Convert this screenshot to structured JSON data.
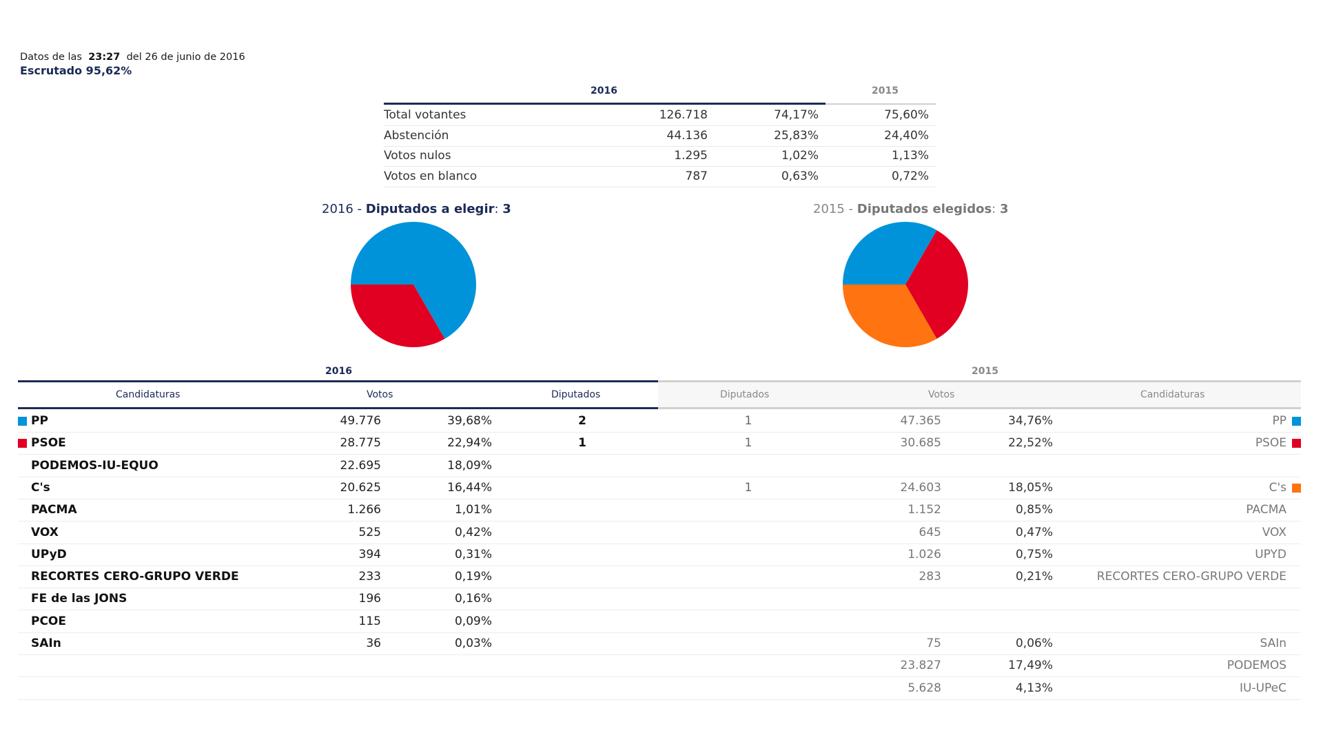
{
  "header": {
    "data_prefix": "Datos de las",
    "time": "23:27",
    "date_suffix": "del 26 de junio de 2016",
    "scrutinized": "Escrutado 95,62%"
  },
  "summary": {
    "year_current": "2016",
    "year_previous": "2015",
    "rows": [
      {
        "label": "Total votantes",
        "votes": "126.718",
        "pct": "74,17%",
        "pct_prev": "75,60%"
      },
      {
        "label": "Abstención",
        "votes": "44.136",
        "pct": "25,83%",
        "pct_prev": "24,40%"
      },
      {
        "label": "Votos nulos",
        "votes": "1.295",
        "pct": "1,02%",
        "pct_prev": "1,13%"
      },
      {
        "label": "Votos en blanco",
        "votes": "787",
        "pct": "0,63%",
        "pct_prev": "0,72%"
      }
    ]
  },
  "pies": {
    "current": {
      "year": "2016",
      "sep": " - ",
      "label": "Diputados a elegir",
      "colon": ": ",
      "count": "3"
    },
    "previous": {
      "year": "2015",
      "sep": " - ",
      "label": "Diputados elegidos",
      "colon": ": ",
      "count": "3"
    }
  },
  "chart_data": [
    {
      "type": "pie",
      "title": "2016 - Diputados a elegir: 3",
      "labels": [
        "PP",
        "PSOE"
      ],
      "values": [
        2,
        1
      ],
      "colors": [
        "#0093d9",
        "#e10022"
      ],
      "start": "left, clockwise"
    },
    {
      "type": "pie",
      "title": "2015 - Diputados elegidos: 3",
      "labels": [
        "PP",
        "PSOE",
        "C's"
      ],
      "values": [
        1,
        1,
        1
      ],
      "colors": [
        "#0093d9",
        "#e10022",
        "#ff7310"
      ],
      "start": "left, clockwise"
    }
  ],
  "results": {
    "year_current": "2016",
    "year_previous": "2015",
    "columns_current": {
      "candidaturas": "Candidaturas",
      "votos": "Votos",
      "diputados": "Diputados"
    },
    "columns_previous": {
      "diputados": "Diputados",
      "votos": "Votos",
      "candidaturas": "Candidaturas"
    },
    "rows": [
      {
        "name16": "PP",
        "color16": "#0093d9",
        "votes16": "49.776",
        "pct16": "39,68%",
        "seats16": "2",
        "seats15": "1",
        "votes15": "47.365",
        "pct15": "34,76%",
        "name15": "PP",
        "color15": "#0093d9"
      },
      {
        "name16": "PSOE",
        "color16": "#e10022",
        "votes16": "28.775",
        "pct16": "22,94%",
        "seats16": "1",
        "seats15": "1",
        "votes15": "30.685",
        "pct15": "22,52%",
        "name15": "PSOE",
        "color15": "#e10022"
      },
      {
        "name16": "PODEMOS-IU-EQUO",
        "votes16": "22.695",
        "pct16": "18,09%"
      },
      {
        "name16": "C's",
        "votes16": "20.625",
        "pct16": "16,44%",
        "seats15": "1",
        "votes15": "24.603",
        "pct15": "18,05%",
        "name15": "C's",
        "color15": "#ff7310"
      },
      {
        "name16": "PACMA",
        "votes16": "1.266",
        "pct16": "1,01%",
        "votes15": "1.152",
        "pct15": "0,85%",
        "name15": "PACMA"
      },
      {
        "name16": "VOX",
        "votes16": "525",
        "pct16": "0,42%",
        "votes15": "645",
        "pct15": "0,47%",
        "name15": "VOX"
      },
      {
        "name16": "UPyD",
        "votes16": "394",
        "pct16": "0,31%",
        "votes15": "1.026",
        "pct15": "0,75%",
        "name15": "UPYD"
      },
      {
        "name16": "RECORTES CERO-GRUPO VERDE",
        "votes16": "233",
        "pct16": "0,19%",
        "votes15": "283",
        "pct15": "0,21%",
        "name15": "RECORTES CERO-GRUPO VERDE"
      },
      {
        "name16": "FE de las JONS",
        "votes16": "196",
        "pct16": "0,16%"
      },
      {
        "name16": "PCOE",
        "votes16": "115",
        "pct16": "0,09%"
      },
      {
        "name16": "SAIn",
        "votes16": "36",
        "pct16": "0,03%",
        "votes15": "75",
        "pct15": "0,06%",
        "name15": "SAIn"
      },
      {
        "votes15": "23.827",
        "pct15": "17,49%",
        "name15": "PODEMOS"
      },
      {
        "votes15": "5.628",
        "pct15": "4,13%",
        "name15": "IU-UPeC"
      }
    ]
  }
}
